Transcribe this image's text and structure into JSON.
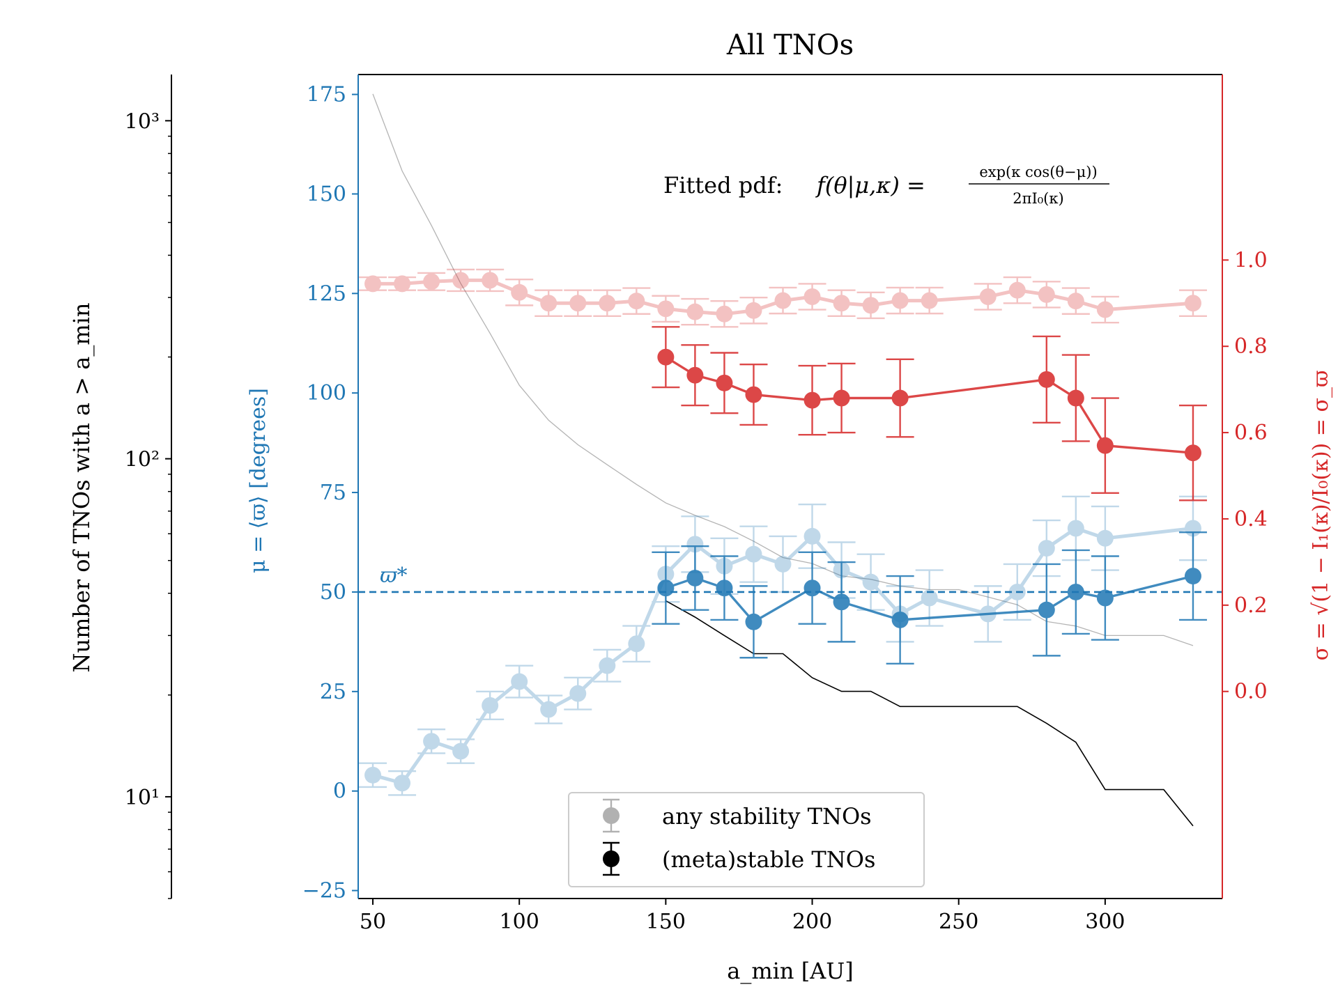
{
  "chart_data": {
    "type": "scatter",
    "title": "All TNOs",
    "xlabel": "a_min [AU]",
    "xlim": [
      45,
      340
    ],
    "x_ticks": [
      50,
      100,
      150,
      200,
      250,
      300
    ],
    "x_tick_labels": [
      "50",
      "100",
      "150",
      "200",
      "250",
      "300"
    ],
    "left_axis": {
      "label": "μ = ⟨ϖ⟩ [degrees]",
      "ylim": [
        -27,
        180
      ],
      "ticks": [
        -25,
        0,
        25,
        50,
        75,
        100,
        125,
        150,
        175
      ],
      "tick_labels": [
        "−25",
        "0",
        "25",
        "50",
        "75",
        "100",
        "125",
        "150",
        "175"
      ],
      "color": "#1f77b4"
    },
    "right_axis": {
      "label": "σ = √(1 − I₁(κ)/I₀(κ)) = σ_ϖ",
      "ylim": [
        -0.48,
        1.43
      ],
      "ticks": [
        0.0,
        0.2,
        0.4,
        0.6,
        0.8,
        1.0
      ],
      "tick_labels": [
        "0.0",
        "0.2",
        "0.4",
        "0.6",
        "0.8",
        "1.0"
      ],
      "color": "#d62728"
    },
    "count_axis": {
      "label": "Number of TNOs with a > a_min",
      "scale": "log",
      "ylim": [
        5.0,
        1370
      ],
      "major_ticks": [
        10,
        100,
        1000
      ],
      "major_tick_labels": [
        "10¹",
        "10²",
        "10³"
      ]
    },
    "reference_line": {
      "name": "ϖ*",
      "label": "ϖ*",
      "value": 50,
      "color": "#1f77b4"
    },
    "annotation": "Fitted pdf: f(θ|μ,κ) = exp(κ cos(θ−μ)) / 2πI₀(κ)",
    "annotation_parts": {
      "prefix": "Fitted pdf:",
      "lhs": "f(θ|μ,κ) =",
      "numerator": "exp(κ cos(θ−μ))",
      "denominator": "2πI₀(κ)"
    },
    "legend": {
      "placement": "bottom-center",
      "entries": [
        {
          "label": "any stability TNOs",
          "style": "faded"
        },
        {
          "label": "(meta)stable TNOs",
          "style": "solid"
        }
      ]
    },
    "series": [
      {
        "name": "μ any stability TNOs",
        "axis": "left",
        "color": "#1f77b4",
        "style": "faded",
        "x": [
          50,
          60,
          70,
          80,
          90,
          100,
          110,
          120,
          130,
          140,
          150,
          160,
          170,
          180,
          190,
          200,
          210,
          220,
          230,
          240,
          260,
          270,
          280,
          290,
          300,
          330
        ],
        "y": [
          4,
          2,
          12.5,
          10,
          21.5,
          27.5,
          20.5,
          24.5,
          31.5,
          37,
          54.5,
          62,
          56.5,
          59.5,
          57,
          64,
          55.5,
          52.5,
          44.5,
          48.5,
          44.5,
          50,
          61,
          66,
          63.5,
          66
        ],
        "err": [
          3,
          3,
          3,
          3,
          3.5,
          4,
          3.5,
          4,
          4,
          4.5,
          7,
          7,
          7,
          7,
          7,
          8,
          7,
          7,
          7,
          7,
          7,
          7,
          7,
          8,
          8,
          8
        ]
      },
      {
        "name": "μ (meta)stable TNOs",
        "axis": "left",
        "color": "#1f77b4",
        "style": "solid",
        "x": [
          150,
          160,
          170,
          180,
          200,
          210,
          230,
          280,
          290,
          300,
          330
        ],
        "y": [
          51,
          53.5,
          51,
          42.5,
          51,
          47.5,
          43,
          45.5,
          50,
          48.5,
          54
        ],
        "err": [
          9,
          8,
          8,
          9,
          9,
          10,
          11,
          11.5,
          10.5,
          10.5,
          11
        ]
      },
      {
        "name": "σ any stability TNOs",
        "axis": "right",
        "color": "#d62728",
        "style": "faded",
        "x": [
          50,
          60,
          70,
          80,
          90,
          100,
          110,
          120,
          130,
          140,
          150,
          160,
          170,
          180,
          190,
          200,
          210,
          220,
          230,
          240,
          260,
          270,
          280,
          290,
          300,
          330
        ],
        "y": [
          0.945,
          0.945,
          0.95,
          0.953,
          0.953,
          0.925,
          0.9,
          0.9,
          0.9,
          0.905,
          0.887,
          0.88,
          0.875,
          0.883,
          0.906,
          0.915,
          0.9,
          0.895,
          0.906,
          0.906,
          0.915,
          0.93,
          0.92,
          0.905,
          0.885,
          0.9
        ],
        "err": [
          0.015,
          0.015,
          0.02,
          0.025,
          0.025,
          0.03,
          0.03,
          0.03,
          0.03,
          0.03,
          0.03,
          0.03,
          0.03,
          0.03,
          0.03,
          0.03,
          0.03,
          0.03,
          0.03,
          0.03,
          0.03,
          0.03,
          0.03,
          0.03,
          0.03,
          0.03
        ]
      },
      {
        "name": "σ (meta)stable TNOs",
        "axis": "right",
        "color": "#d62728",
        "style": "solid",
        "x": [
          150,
          160,
          170,
          180,
          200,
          210,
          230,
          280,
          290,
          300,
          330
        ],
        "y": [
          0.775,
          0.733,
          0.715,
          0.688,
          0.675,
          0.68,
          0.68,
          0.723,
          0.68,
          0.57,
          0.553
        ],
        "err": [
          0.07,
          0.07,
          0.07,
          0.07,
          0.08,
          0.08,
          0.09,
          0.1,
          0.1,
          0.11,
          0.11
        ]
      },
      {
        "name": "count any stability TNOs",
        "axis": "count",
        "color": "#b4b4b4",
        "style": "line",
        "x": [
          50,
          60,
          70,
          80,
          90,
          100,
          110,
          120,
          130,
          140,
          150,
          160,
          170,
          180,
          190,
          200,
          210,
          220,
          230,
          240,
          250,
          260,
          270,
          280,
          290,
          300,
          310,
          320,
          330
        ],
        "y": [
          1200,
          710,
          490,
          330,
          235,
          165,
          130,
          110,
          96,
          84,
          74,
          68,
          63,
          57,
          51,
          49,
          45,
          44,
          42,
          41,
          41,
          39,
          37,
          33,
          32,
          30,
          30,
          30,
          28
        ]
      },
      {
        "name": "count (meta)stable TNOs",
        "axis": "count",
        "color": "#000000",
        "style": "line",
        "x": [
          150,
          160,
          170,
          180,
          190,
          200,
          210,
          220,
          230,
          240,
          250,
          260,
          270,
          280,
          290,
          300,
          310,
          320,
          330
        ],
        "y": [
          38,
          34,
          30,
          26.5,
          26.5,
          22.5,
          20.5,
          20.5,
          18.5,
          18.5,
          18.5,
          18.5,
          18.5,
          16.5,
          14.5,
          10.5,
          10.5,
          10.5,
          8.2
        ]
      }
    ]
  }
}
